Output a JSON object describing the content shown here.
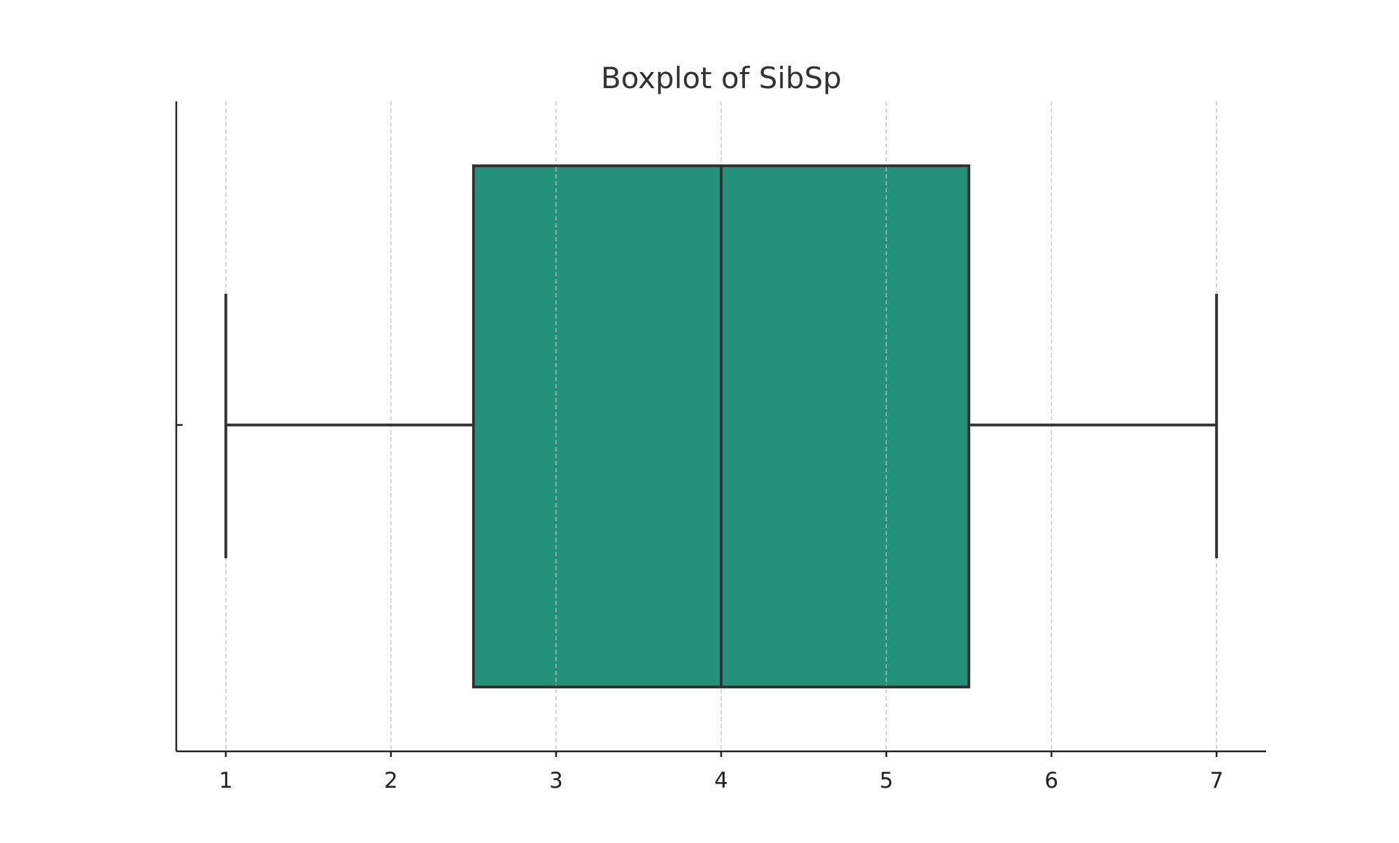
{
  "chart_data": {
    "type": "boxplot",
    "title": "Boxplot of SibSp",
    "xlabel": "",
    "ylabel": "",
    "orientation": "horizontal",
    "xlim": [
      0.7,
      7.3
    ],
    "xticks": [
      1,
      2,
      3,
      4,
      5,
      6,
      7
    ],
    "grid": "x-dashed",
    "box": {
      "whisker_low": 1,
      "q1": 2.5,
      "median": 4,
      "q3": 5.5,
      "whisker_high": 7
    },
    "box_color": "#23917a",
    "line_color": "#333333"
  }
}
